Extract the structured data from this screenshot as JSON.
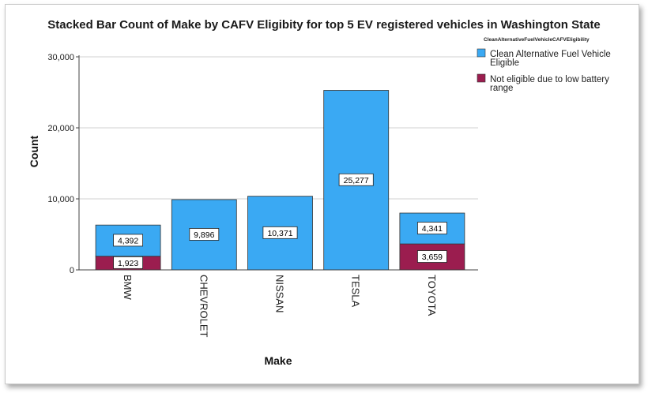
{
  "chart_data": {
    "type": "bar",
    "stacked": true,
    "title": "Stacked Bar Count of Make by CAFV Eligibity for top 5 EV registered vehicles in Washington State",
    "xlabel": "Make",
    "ylabel": "Count",
    "categories": [
      "BMW",
      "CHEVROLET",
      "NISSAN",
      "TESLA",
      "TOYOTA"
    ],
    "series": [
      {
        "name": "Not eligible due to low battery range",
        "color": "#9b1d4f",
        "values": [
          1923,
          0,
          0,
          0,
          3659
        ]
      },
      {
        "name": "Clean Alternative Fuel Vehicle Eligible",
        "color": "#3aa9f3",
        "values": [
          4392,
          9896,
          10371,
          25277,
          4341
        ]
      }
    ],
    "series_labels": [
      [
        "1,923",
        "",
        "",
        "",
        "3,659"
      ],
      [
        "4,392",
        "9,896",
        "10,371",
        "25,277",
        "4,341"
      ]
    ],
    "yticks": [
      0,
      10000,
      20000,
      30000
    ],
    "ytick_labels": [
      "0",
      "10,000",
      "20,000",
      "30,000"
    ],
    "ylim": [
      0,
      30000
    ],
    "grid": true,
    "legend_position": "right",
    "legend_title": "CleanAlternativeFuelVehicleCAFVEligibility",
    "legend_entries": [
      {
        "text_lines": [
          "Clean Alternative Fuel Vehicle",
          "Eligible"
        ],
        "color": "#3aa9f3"
      },
      {
        "text_lines": [
          "Not eligible due to low battery",
          "range"
        ],
        "color": "#9b1d4f"
      }
    ]
  }
}
